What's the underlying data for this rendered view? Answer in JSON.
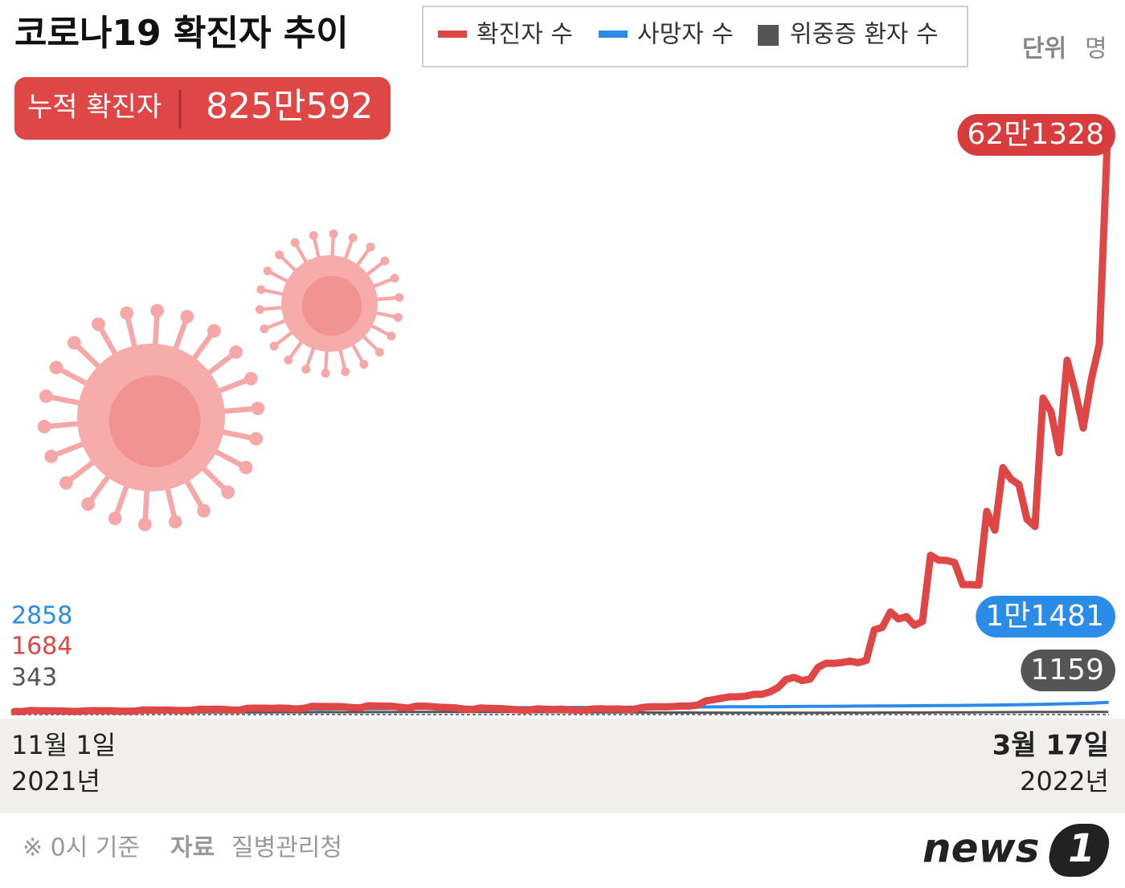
{
  "chart_data": {
    "type": "line",
    "title": "코로나19 확진자 추이",
    "unit_title": "단위",
    "unit": "명",
    "summary_label": "누적 확진자",
    "summary_value": "825만592",
    "categories": [
      "11월 1일",
      null,
      null,
      null,
      null,
      null,
      null,
      null,
      null,
      null,
      null,
      null,
      null,
      null,
      null,
      null,
      null,
      null,
      null,
      null,
      null,
      null,
      null,
      null,
      null,
      null,
      null,
      null,
      null,
      null,
      null,
      null,
      null,
      null,
      null,
      null,
      null,
      null,
      null,
      null,
      null,
      null,
      null,
      null,
      null,
      null,
      null,
      null,
      null,
      null,
      null,
      null,
      null,
      null,
      null,
      null,
      null,
      null,
      null,
      null,
      null,
      null,
      null,
      null,
      null,
      null,
      null,
      null,
      null,
      null,
      null,
      null,
      null,
      null,
      null,
      null,
      null,
      null,
      null,
      null,
      null,
      null,
      null,
      null,
      null,
      null,
      null,
      null,
      null,
      null,
      null,
      null,
      null,
      null,
      null,
      null,
      null,
      null,
      null,
      null,
      null,
      null,
      null,
      null,
      null,
      null,
      null,
      null,
      null,
      null,
      null,
      null,
      null,
      null,
      null,
      null,
      null,
      null,
      null,
      null,
      null,
      null,
      null,
      null,
      null,
      null,
      null,
      null,
      null,
      null,
      null,
      null,
      null,
      null,
      null,
      null,
      "3월 17일"
    ],
    "year_labels": [
      "2021년",
      "2022년"
    ],
    "ylim": [
      0,
      640000
    ],
    "series": [
      {
        "name": "확진자 수",
        "color": "#df4646",
        "values": [
          1684,
          1589,
          2667,
          2482,
          2344,
          2247,
          2224,
          1758,
          1719,
          2425,
          2520,
          2368,
          2419,
          2006,
          1930,
          2124,
          3187,
          3292,
          3034,
          3205,
          2827,
          2699,
          2827,
          4116,
          3938,
          4068,
          3928,
          3309,
          3032,
          5123,
          5266,
          5265,
          4944,
          5352,
          5128,
          4325,
          4954,
          7175,
          7102,
          7022,
          6977,
          6689,
          5817,
          5567,
          7850,
          7622,
          7435,
          7314,
          6236,
          5318,
          7456,
          7455,
          6919,
          6233,
          5842,
          5419,
          4207,
          3865,
          5409,
          5037,
          4875,
          4415,
          3833,
          3129,
          3022,
          4442,
          4126,
          3714,
          4000,
          3376,
          3005,
          3094,
          4385,
          4542,
          4172,
          4423,
          3859,
          3857,
          5805,
          6603,
          6769,
          6634,
          7009,
          7630,
          7513,
          8571,
          13012,
          14518,
          16096,
          17514,
          17542,
          18342,
          20270,
          20270,
          22907,
          27443,
          36362,
          38691,
          35286,
          36719,
          49567,
          54122,
          53926,
          54941,
          56431,
          54619,
          57177,
          90443,
          93131,
          109831,
          102211,
          104829,
          95362,
          99569,
          171452,
          166212,
          165890,
          163565,
          139626,
          139626,
          138993,
          219241,
          198800,
          266853,
          254327,
          248387,
          210716,
          202721,
          342446,
          327549,
          282987,
          383659,
          350190,
          309790,
          362338,
          400741,
          621328
        ],
        "value_labels": [
          null,
          null,
          null,
          null,
          null,
          null,
          null,
          null,
          null,
          null,
          null,
          null,
          null,
          null,
          null,
          null,
          null,
          null,
          null,
          null,
          null,
          null,
          null,
          null,
          null,
          null,
          null,
          null,
          null,
          null,
          null,
          null,
          null,
          null,
          null,
          null,
          null,
          null,
          null,
          null,
          null,
          null,
          null,
          null,
          null,
          null,
          null,
          null,
          null,
          null,
          null,
          null,
          null,
          null,
          null,
          null,
          null,
          null,
          null,
          null,
          null,
          null,
          null,
          null,
          null,
          null,
          null,
          null,
          null,
          null,
          null,
          null,
          null,
          null,
          null,
          null,
          null,
          null,
          null,
          null,
          null,
          null,
          null,
          null,
          null,
          null,
          null,
          null,
          null,
          null,
          null,
          null,
          null,
          null,
          null,
          null,
          null,
          null,
          null,
          null,
          null,
          null,
          null,
          null,
          null,
          null,
          null,
          null,
          null,
          null,
          null,
          null,
          null,
          null,
          null,
          null,
          null,
          null,
          null,
          null,
          null,
          null,
          null,
          null,
          null,
          null,
          null,
          null,
          null,
          null,
          null,
          null,
          null,
          null,
          null,
          null,
          "62만1328"
        ]
      },
      {
        "name": "사망자 수",
        "color": "#2b8ce8",
        "values": [
          2858,
          2886,
          2913,
          2941,
          2968,
          2996,
          3024,
          3051,
          3079,
          3106,
          3134,
          3162,
          3189,
          3217,
          3244,
          3272,
          3300,
          3327,
          3355,
          3382,
          3410,
          3438,
          3465,
          3493,
          3520,
          3548,
          3576,
          3603,
          3631,
          3658,
          3705,
          3770,
          3836,
          3902,
          3967,
          4033,
          4098,
          4164,
          4230,
          4295,
          4361,
          4427,
          4492,
          4558,
          4623,
          4689,
          4755,
          4820,
          4886,
          4952,
          5017,
          5083,
          5148,
          5214,
          5280,
          5345,
          5411,
          5476,
          5542,
          5608,
          5625,
          5650,
          5688,
          5725,
          5763,
          5800,
          5838,
          5875,
          5913,
          5950,
          5988,
          6025,
          6063,
          6100,
          6138,
          6175,
          6213,
          6250,
          6288,
          6325,
          6363,
          6400,
          6438,
          6475,
          6513,
          6550,
          6588,
          6625,
          6663,
          6700,
          6738,
          6755,
          6772,
          6826,
          6880,
          6934,
          6988,
          7042,
          7096,
          7150,
          7204,
          7258,
          7312,
          7366,
          7420,
          7474,
          7528,
          7582,
          7636,
          7690,
          7744,
          7798,
          7852,
          7906,
          7960,
          8014,
          8068,
          8122,
          8176,
          8266,
          8394,
          8490,
          8586,
          8707,
          8831,
          8957,
          9096,
          9234,
          9440,
          9646,
          9875,
          10052,
          10137,
          10448,
          10595,
          11052,
          11481
        ],
        "value_labels": [
          null,
          null,
          null,
          null,
          null,
          null,
          null,
          null,
          null,
          null,
          null,
          null,
          null,
          null,
          null,
          null,
          null,
          null,
          null,
          null,
          null,
          null,
          null,
          null,
          null,
          null,
          null,
          null,
          null,
          null,
          null,
          null,
          null,
          null,
          null,
          null,
          null,
          null,
          null,
          null,
          null,
          null,
          null,
          null,
          null,
          null,
          null,
          null,
          null,
          null,
          null,
          null,
          null,
          null,
          null,
          null,
          null,
          null,
          null,
          null,
          null,
          null,
          null,
          null,
          null,
          null,
          null,
          null,
          null,
          null,
          null,
          null,
          null,
          null,
          null,
          null,
          null,
          null,
          null,
          null,
          null,
          null,
          null,
          null,
          null,
          null,
          null,
          null,
          null,
          null,
          null,
          null,
          null,
          null,
          null,
          null,
          null,
          null,
          null,
          null,
          null,
          null,
          null,
          null,
          null,
          null,
          null,
          null,
          null,
          null,
          null,
          null,
          null,
          null,
          null,
          null,
          null,
          null,
          null,
          null,
          null,
          null,
          null,
          null,
          null,
          null,
          null,
          null,
          null,
          null,
          null,
          null,
          null,
          null,
          null,
          null,
          "1만1481"
        ]
      },
      {
        "name": "위중증 환자 수",
        "color": "#555555",
        "values": [
          343,
          339,
          365,
          378,
          405,
          411,
          409,
          425,
          460,
          473,
          475,
          483,
          485,
          495,
          495,
          522,
          506,
          508,
          499,
          514,
          508,
          515,
          549,
          586,
          612,
          634,
          647,
          632,
          647,
          661,
          723,
          733,
          736,
          752,
          744,
          774,
          727,
          774,
          840,
          852,
          856,
          894,
          876,
          906,
          964,
          989,
          975,
          971,
          997,
          1025,
          1022,
          1063,
          1084,
          1083,
          1105,
          1081,
          1102,
          1151,
          1145,
          1126,
          1015,
          1015,
          1020,
          1004,
          1015,
          882,
          882,
          868,
          838,
          818,
          811,
          786,
          732,
          681,
          659,
          626,
          597,
          576,
          532,
          488,
          467,
          433,
          431,
          420,
          418,
          392,
          385,
          350,
          317,
          288,
          274,
          278,
          272,
          270,
          278,
          285,
          261,
          270,
          282,
          285,
          274,
          279,
          278,
          313,
          306,
          288,
          324,
          385,
          408,
          439,
          480,
          512,
          480,
          439,
          512,
          643,
          655,
          654,
          715,
          727,
          762,
          797,
          766,
          896,
          885,
          955,
          1007,
          1087,
          1113,
          1116,
          1121,
          1066,
          1074,
          1158,
          1196,
          1244,
          1159
        ]
      }
    ],
    "note": "※ 0시 기준",
    "source_label": "자료",
    "source": "질병관리청",
    "logo_text": "news",
    "logo_mark": "1"
  }
}
